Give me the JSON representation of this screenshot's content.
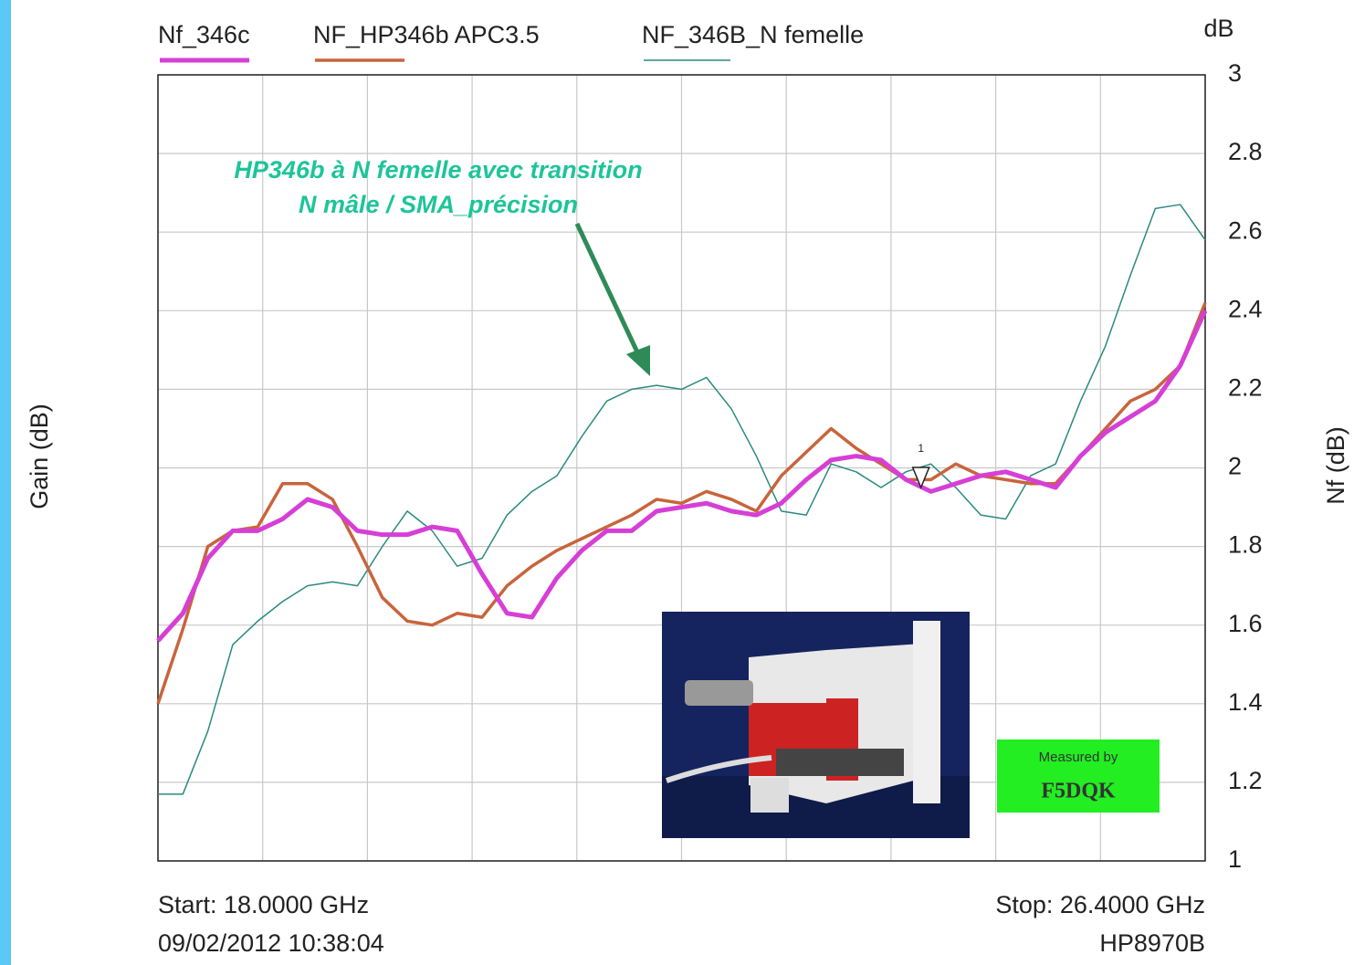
{
  "chart_data": {
    "type": "line",
    "y_axis_unit": "dB",
    "y_axis_left_label": "Gain (dB)",
    "y_axis_right_label": "Nf (dB)",
    "annotation": [
      "HP346b à N femelle avec transition",
      "N mâle / SMA_précision"
    ],
    "start_label": "Start: 18.0000 GHz",
    "stop_label": "Stop: 26.4000 GHz",
    "timestamp": "09/02/2012 10:38:04",
    "instrument": "HP8970B",
    "badge": [
      "Measured by",
      "F5DQK"
    ],
    "marker": {
      "label": "1",
      "x": 24.12,
      "value": 1.95
    },
    "xlim": [
      18,
      26.4
    ],
    "xticks": [
      18,
      18.84,
      19.68,
      20.52,
      21.36,
      22.2,
      23.04,
      23.88,
      24.72,
      25.56,
      26.4
    ],
    "ylim": [
      1,
      3
    ],
    "yticks": [
      1,
      1.2,
      1.4,
      1.6,
      1.8,
      2,
      2.2,
      2.4,
      2.6,
      2.8,
      3
    ],
    "grid": true,
    "x": [
      18.0,
      18.2,
      18.4,
      18.6,
      18.8,
      19.0,
      19.2,
      19.4,
      19.6,
      19.8,
      20.0,
      20.2,
      20.4,
      20.6,
      20.8,
      21.0,
      21.2,
      21.4,
      21.6,
      21.8,
      22.0,
      22.2,
      22.4,
      22.6,
      22.8,
      23.0,
      23.2,
      23.4,
      23.6,
      23.8,
      24.0,
      24.2,
      24.4,
      24.6,
      24.8,
      25.0,
      25.2,
      25.4,
      25.6,
      25.8,
      26.0,
      26.2,
      26.4
    ],
    "series": [
      {
        "name": "Nf_346c",
        "color": "#d63fd6",
        "width": 5,
        "values": [
          1.56,
          1.63,
          1.77,
          1.84,
          1.84,
          1.87,
          1.92,
          1.9,
          1.84,
          1.83,
          1.83,
          1.85,
          1.84,
          1.73,
          1.63,
          1.62,
          1.72,
          1.79,
          1.84,
          1.84,
          1.89,
          1.9,
          1.91,
          1.89,
          1.88,
          1.91,
          1.97,
          2.02,
          2.03,
          2.02,
          1.97,
          1.94,
          1.96,
          1.98,
          1.99,
          1.97,
          1.95,
          2.03,
          2.09,
          2.13,
          2.17,
          2.26,
          2.4
        ]
      },
      {
        "name": "NF_HP346b APC3.5",
        "color": "#c8643c",
        "width": 3.5,
        "values": [
          1.4,
          1.59,
          1.8,
          1.84,
          1.85,
          1.96,
          1.96,
          1.92,
          1.8,
          1.67,
          1.61,
          1.6,
          1.63,
          1.62,
          1.7,
          1.75,
          1.79,
          1.82,
          1.85,
          1.88,
          1.92,
          1.91,
          1.94,
          1.92,
          1.89,
          1.98,
          2.04,
          2.1,
          2.05,
          2.01,
          1.97,
          1.97,
          2.01,
          1.98,
          1.97,
          1.96,
          1.96,
          2.03,
          2.1,
          2.17,
          2.2,
          2.26,
          2.42
        ]
      },
      {
        "name": "NF_346B_N femelle",
        "color": "#2a8a80",
        "width": 1.5,
        "values": [
          1.17,
          1.17,
          1.33,
          1.55,
          1.61,
          1.66,
          1.7,
          1.71,
          1.7,
          1.8,
          1.89,
          1.84,
          1.75,
          1.77,
          1.88,
          1.94,
          1.98,
          2.08,
          2.17,
          2.2,
          2.21,
          2.2,
          2.23,
          2.15,
          2.03,
          1.89,
          1.88,
          2.01,
          1.99,
          1.95,
          1.99,
          2.01,
          1.95,
          1.88,
          1.87,
          1.98,
          2.01,
          2.17,
          2.31,
          2.49,
          2.66,
          2.67,
          2.58
        ]
      }
    ]
  }
}
